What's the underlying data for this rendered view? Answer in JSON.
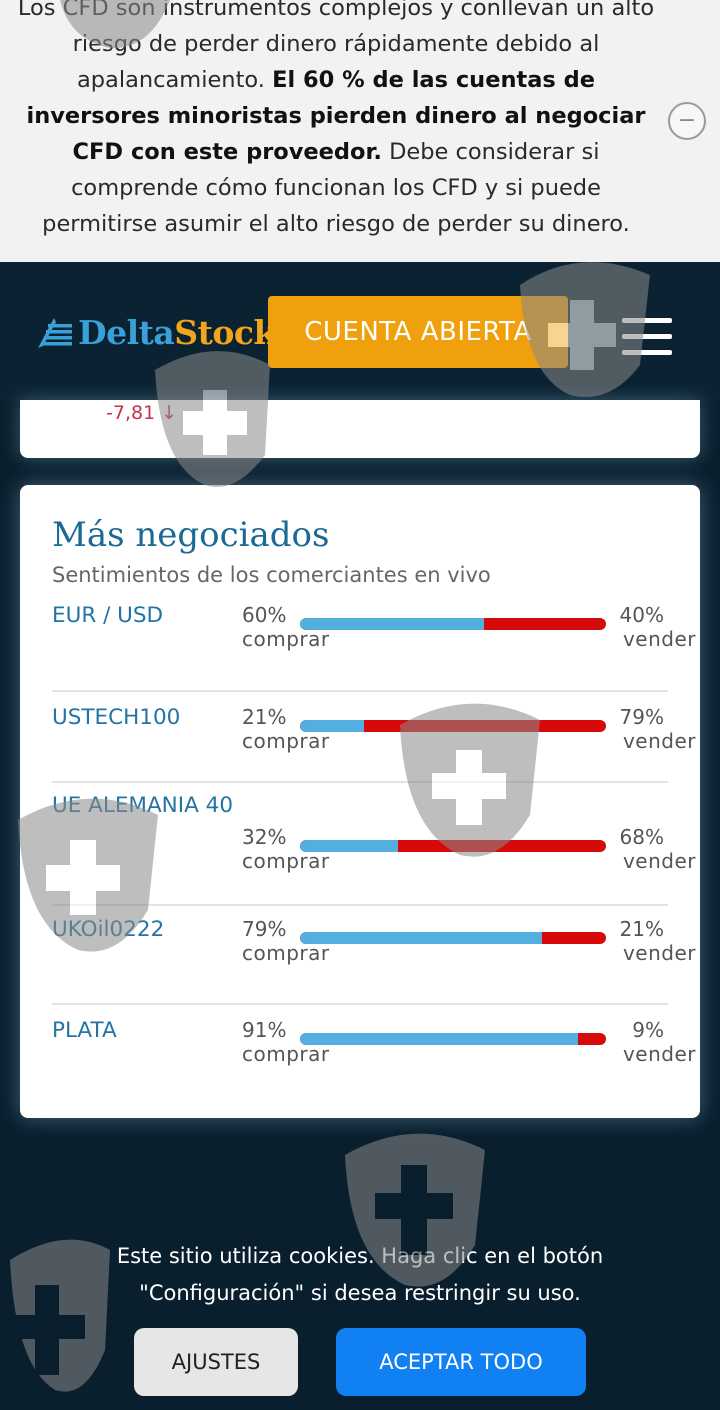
{
  "risk_warning": {
    "text_start": "Los CFD son instrumentos complejos y conllevan un alto riesgo de perder dinero rápidamente debido al apalancamiento. ",
    "text_bold": "El 60 % de las cuentas de inversores minoristas pierden dinero al negociar CFD con este proveedor.",
    "text_end": " Debe considerar si comprende cómo funcionan los CFD y si puede permitirse asumir el alto riesgo de perder su dinero.",
    "collapse_symbol": "−"
  },
  "header": {
    "logo_delta": "Delta",
    "logo_stock": "Stock",
    "open_account_label": "CUENTA ABIERTA",
    "menu_icon": "hamburger-menu-icon"
  },
  "prev_card": {
    "change": "-7,81 ↓"
  },
  "most_traded": {
    "title": "Más negociados",
    "subtitle": "Sentimientos de los comerciantes en vivo",
    "rows": [
      {
        "symbol": "EUR / USD",
        "buy_pct": "60%",
        "buy_label": "comprar",
        "sell_pct": "40%",
        "sell_label": "vender",
        "buy_fraction": 0.6
      },
      {
        "symbol": "USTECH100",
        "buy_pct": "21%",
        "buy_label": "comprar",
        "sell_pct": "79%",
        "sell_label": "vender",
        "buy_fraction": 0.21
      },
      {
        "symbol": "UE ALEMANIA 40",
        "buy_pct": "32%",
        "buy_label": "comprar",
        "sell_pct": "68%",
        "sell_label": "vender",
        "buy_fraction": 0.32
      },
      {
        "symbol": "UKOil0222",
        "buy_pct": "79%",
        "buy_label": "comprar",
        "sell_pct": "21%",
        "sell_label": "vender",
        "buy_fraction": 0.79
      },
      {
        "symbol": "PLATA",
        "buy_pct": "91%",
        "buy_label": "comprar",
        "sell_pct": "9%",
        "sell_label": "vender",
        "buy_fraction": 0.91
      }
    ]
  },
  "cookie": {
    "text": "Este sitio utiliza cookies. Haga clic en el botón \"Configuración\" si desea restringir su uso.",
    "settings_label": "AJUSTES",
    "accept_label": "ACEPTAR TODO"
  },
  "colors": {
    "buy": "#52afe0",
    "sell": "#d60a0a",
    "accent": "#f0a00c",
    "accept": "#1080f2"
  }
}
